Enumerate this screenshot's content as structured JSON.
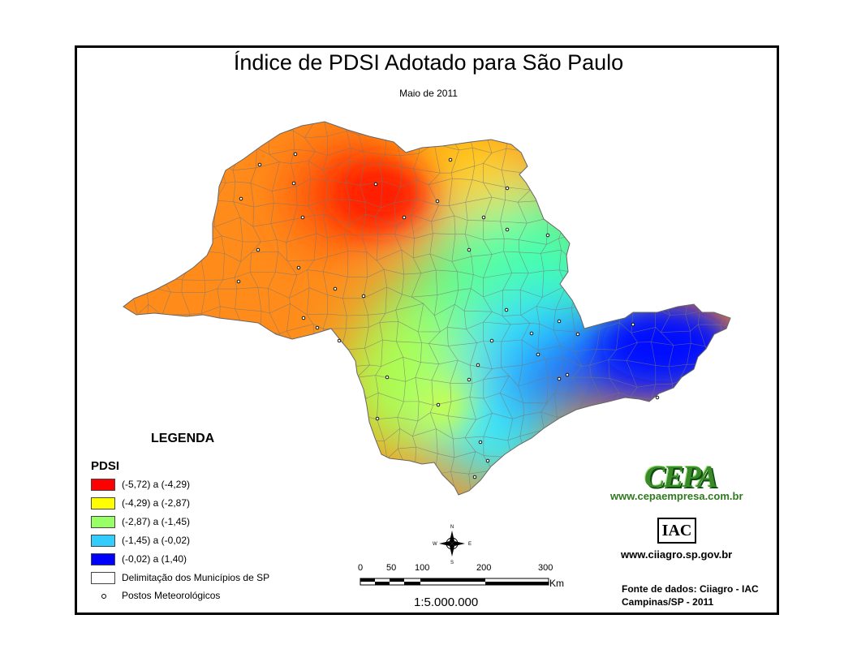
{
  "map": {
    "title": "Índice de PDSI Adotado para São Paulo",
    "subtitle": "Maio de 2011"
  },
  "legend": {
    "heading": "LEGENDA",
    "pdsi_label": "PDSI",
    "classes": [
      {
        "label": "(-5,72) a (-4,29)",
        "color": "#ff0000"
      },
      {
        "label": "(-4,29) a (-2,87)",
        "color": "#ffff00"
      },
      {
        "label": "(-2,87) a (-1,45)",
        "color": "#99ff66"
      },
      {
        "label": "(-1,45) a (-0,02)",
        "color": "#33ccff"
      },
      {
        "label": "(-0,02) a (1,40)",
        "color": "#0000ff"
      }
    ],
    "boundaries_label": "Delimitação dos Municípios de SP",
    "stations_label": "Postos Meteorológicos"
  },
  "scale": {
    "ticks": [
      "0",
      "50",
      "100",
      "200",
      "300"
    ],
    "unit": "Km",
    "ratio": "1:5.000.000"
  },
  "compass": {
    "n": "N",
    "s": "S",
    "e": "E",
    "w": "W"
  },
  "credits": {
    "cepa_logo_text": "CEPA",
    "cepa_url": "www.cepaempresa.com.br",
    "iac_logo_text": "IAC",
    "ciiagro_url": "www.ciiagro.sp.gov.br",
    "source_line1": "Fonte de dados: Ciiagro - IAC",
    "source_line2": "Campinas/SP - 2011"
  }
}
